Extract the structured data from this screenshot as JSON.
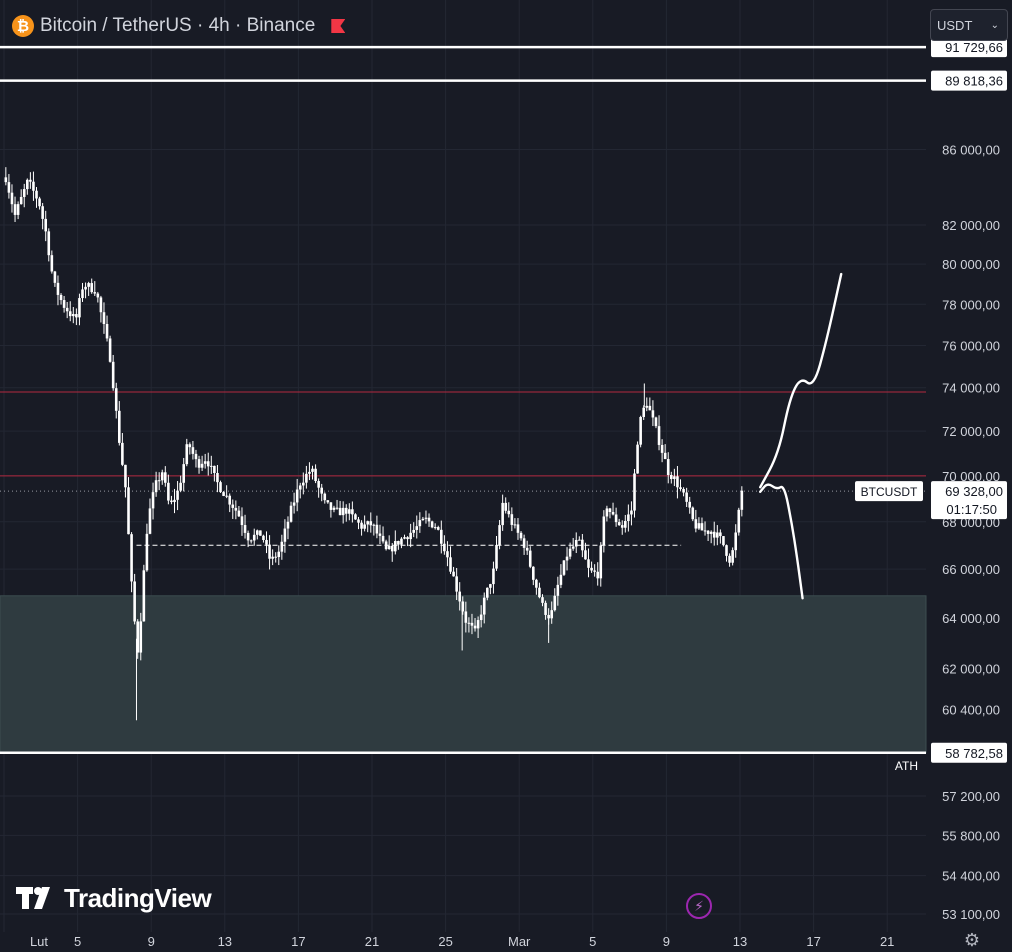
{
  "header": {
    "title": "Bitcoin / TetherUS · 4h · Binance",
    "currency": "USDT",
    "icons": [
      "bitcoin-icon",
      "flag-icon",
      "chevron-down-icon"
    ]
  },
  "branding": {
    "logo_text": "TradingView",
    "icons": [
      "lightning-icon",
      "gear-icon"
    ]
  },
  "colors": {
    "background": "#181b25",
    "candle": "#ffffff",
    "resistance_line": "#b2283f",
    "support_zone": "#2f3b40"
  },
  "chart_data": {
    "type": "candlestick",
    "symbol": "BTCUSDT",
    "timeframe": "4h",
    "y_axis": {
      "scale": "log",
      "range": [
        52500,
        94500
      ],
      "tick_labels": [
        "86 000,00",
        "82 000,00",
        "80 000,00",
        "78 000,00",
        "76 000,00",
        "74 000,00",
        "72 000,00",
        "70 000,00",
        "68 000,00",
        "66 000,00",
        "64 000,00",
        "62 000,00",
        "60 400,00",
        "57 200,00",
        "55 800,00",
        "54 400,00",
        "53 100,00"
      ]
    },
    "x_axis": {
      "tick_labels": [
        "Lut",
        "5",
        "9",
        "13",
        "17",
        "21",
        "25",
        "Mar",
        "5",
        "9",
        "13",
        "17",
        "21"
      ],
      "tick_x_day": [
        0,
        4,
        8,
        12,
        16,
        20,
        24,
        28,
        32,
        36,
        40,
        44,
        48
      ]
    },
    "price_labels": [
      {
        "label": "91 729,66",
        "price": 91729.66
      },
      {
        "label": "89 818,36",
        "price": 89818.36
      },
      {
        "label": "58 782,58",
        "price": 58782.58,
        "tag": "ATH"
      }
    ],
    "current_price": {
      "label": "BTCUSDT",
      "value": "69 328,00",
      "countdown": "01:17:50",
      "price": 69328
    },
    "horizontal_lines": [
      {
        "price": 91729.66,
        "color": "#ffffff"
      },
      {
        "price": 89818.36,
        "color": "#ffffff"
      },
      {
        "price": 73800,
        "color": "#b2283f"
      },
      {
        "price": 70000,
        "color": "#b2283f"
      },
      {
        "price": 58782.58,
        "color": "#ffffff"
      }
    ],
    "dashed_line": {
      "price": 67000,
      "from_day": 7.2,
      "to_day": 36.8
    },
    "zone": {
      "from_price": 58782.58,
      "to_price": 64900
    },
    "price_path": [
      [
        0.1,
        84500
      ],
      [
        0.6,
        82500
      ],
      [
        1.3,
        84300
      ],
      [
        1.9,
        83200
      ],
      [
        2.3,
        81500
      ],
      [
        2.7,
        79000
      ],
      [
        3.2,
        78000
      ],
      [
        3.9,
        77200
      ],
      [
        4.3,
        79000
      ],
      [
        5.0,
        78700
      ],
      [
        5.4,
        77000
      ],
      [
        5.8,
        75300
      ],
      [
        6.2,
        72000
      ],
      [
        6.6,
        69500
      ],
      [
        7.0,
        64500
      ],
      [
        7.3,
        62500
      ],
      [
        7.5,
        64800
      ],
      [
        7.8,
        68000
      ],
      [
        8.2,
        69500
      ],
      [
        8.6,
        70200
      ],
      [
        9.0,
        68600
      ],
      [
        9.5,
        69400
      ],
      [
        10.0,
        71500
      ],
      [
        10.5,
        70500
      ],
      [
        11.0,
        70800
      ],
      [
        11.5,
        69800
      ],
      [
        12.0,
        69200
      ],
      [
        12.7,
        68400
      ],
      [
        13.3,
        67300
      ],
      [
        14.0,
        67500
      ],
      [
        14.5,
        66300
      ],
      [
        15.0,
        66800
      ],
      [
        15.6,
        68500
      ],
      [
        16.1,
        69700
      ],
      [
        16.7,
        70300
      ],
      [
        17.4,
        68800
      ],
      [
        18.0,
        68400
      ],
      [
        18.6,
        68500
      ],
      [
        19.4,
        67800
      ],
      [
        20.0,
        67900
      ],
      [
        20.8,
        66700
      ],
      [
        21.5,
        67200
      ],
      [
        22.2,
        67600
      ],
      [
        22.9,
        68100
      ],
      [
        23.5,
        67800
      ],
      [
        24.0,
        66800
      ],
      [
        24.6,
        65200
      ],
      [
        25.1,
        63900
      ],
      [
        25.6,
        63400
      ],
      [
        26.1,
        64700
      ],
      [
        26.6,
        65900
      ],
      [
        27.1,
        68800
      ],
      [
        27.7,
        67800
      ],
      [
        28.3,
        67000
      ],
      [
        28.8,
        65600
      ],
      [
        29.3,
        64400
      ],
      [
        29.7,
        64000
      ],
      [
        30.1,
        65300
      ],
      [
        30.6,
        66600
      ],
      [
        31.2,
        67200
      ],
      [
        31.8,
        65900
      ],
      [
        32.3,
        65800
      ],
      [
        32.7,
        68800
      ],
      [
        33.1,
        68200
      ],
      [
        33.6,
        67800
      ],
      [
        34.1,
        68500
      ],
      [
        34.5,
        72200
      ],
      [
        34.9,
        73400
      ],
      [
        35.3,
        72400
      ],
      [
        35.7,
        71300
      ],
      [
        36.1,
        70200
      ],
      [
        36.5,
        69800
      ],
      [
        37.0,
        69000
      ],
      [
        37.5,
        67900
      ],
      [
        38.0,
        67600
      ],
      [
        38.5,
        67600
      ],
      [
        39.0,
        67200
      ],
      [
        39.5,
        66300
      ],
      [
        39.8,
        67600
      ],
      [
        40.1,
        69328
      ]
    ],
    "drawings": [
      {
        "name": "projection-up",
        "points": [
          [
            41.1,
            69500
          ],
          [
            42.1,
            71000
          ],
          [
            42.7,
            73500
          ],
          [
            43.3,
            74500
          ],
          [
            44.0,
            74000
          ],
          [
            44.7,
            76200
          ],
          [
            45.5,
            79500
          ]
        ]
      },
      {
        "name": "projection-down",
        "points": [
          [
            41.1,
            69300
          ],
          [
            41.5,
            69700
          ],
          [
            42.0,
            69400
          ],
          [
            42.4,
            69600
          ],
          [
            42.8,
            68000
          ],
          [
            43.1,
            66500
          ],
          [
            43.4,
            64800
          ]
        ]
      }
    ]
  }
}
